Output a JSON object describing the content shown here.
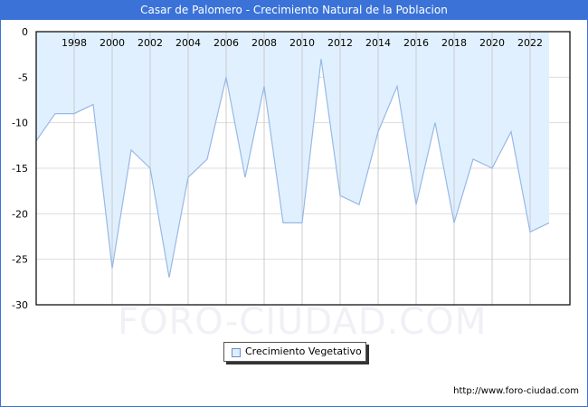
{
  "title": "Casar de Palomero - Crecimiento Natural de la Poblacion",
  "legend": {
    "label": "Crecimiento Vegetativo"
  },
  "footer": {
    "url": "http://www.foro-ciudad.com"
  },
  "watermark": "FORO-CIUDAD.COM",
  "colors": {
    "title_bar": "#3a72d8",
    "fill": "#e1f0fe",
    "line": "#97b8e8",
    "grid": "#dddddd"
  },
  "chart_data": {
    "type": "area",
    "title": "Casar de Palomero - Crecimiento Natural de la Poblacion",
    "xlabel": "",
    "ylabel": "",
    "x": [
      1996,
      1997,
      1998,
      1999,
      2000,
      2001,
      2002,
      2003,
      2004,
      2005,
      2006,
      2007,
      2008,
      2009,
      2010,
      2011,
      2012,
      2013,
      2014,
      2015,
      2016,
      2017,
      2018,
      2019,
      2020,
      2021,
      2022,
      2023
    ],
    "series": [
      {
        "name": "Crecimiento Vegetativo",
        "values": [
          -12,
          -9,
          -9,
          -8,
          -26,
          -13,
          -15,
          -27,
          -16,
          -14,
          -5,
          -16,
          -6,
          -21,
          -21,
          -3,
          -18,
          -19,
          -11,
          -6,
          -19,
          -10,
          -21,
          -14,
          -15,
          -11,
          -22,
          -21
        ]
      }
    ],
    "x_tick_labels": [
      "1998",
      "2000",
      "2002",
      "2004",
      "2006",
      "2008",
      "2010",
      "2012",
      "2014",
      "2016",
      "2018",
      "2020",
      "2022"
    ],
    "y_tick_labels": [
      "0",
      "-5",
      "-10",
      "-15",
      "-20",
      "-25",
      "-30"
    ],
    "ylim": [
      -30,
      0
    ],
    "grid": true,
    "legend_position": "bottom"
  }
}
